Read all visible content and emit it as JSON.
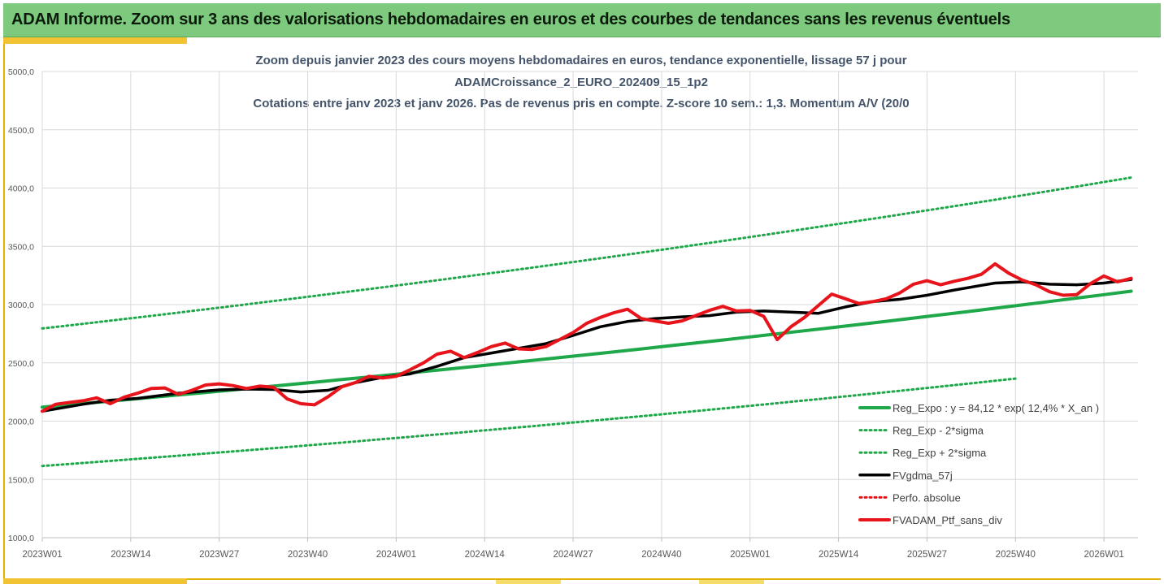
{
  "banner": {
    "title": "ADAM Informe. Zoom sur 3 ans des valorisations hebdomadaires en euros et des courbes de tendances sans les revenus éventuels"
  },
  "chart_data": {
    "type": "line",
    "title_lines": [
      "Zoom depuis janvier 2023 des cours moyens hebdomadaires  en euros, tendance exponentielle, lissage 57 j pour",
      "ADAMCroissance_2_EURO_202409_15_1p2",
      "Cotations entre janv 2023 et janv 2026. Pas de revenus pris en compte. Z-score 10 sem.: 1,3. Momentum A/V (20/0"
    ],
    "ylim": [
      1000,
      5000
    ],
    "y_ticks": [
      "1000,0",
      "1500,0",
      "2000,0",
      "2500,0",
      "3000,0",
      "3500,0",
      "4000,0",
      "4500,0",
      "5000,0"
    ],
    "x_ticks": [
      "2023W01",
      "2023W14",
      "2023W27",
      "2023W40",
      "2024W01",
      "2024W14",
      "2024W27",
      "2024W40",
      "2025W01",
      "2025W14",
      "2025W27",
      "2025W40",
      "2026W01"
    ],
    "x_range_weeks": [
      0,
      161
    ],
    "series": [
      {
        "name": "Reg_Expo : y = 84,12 * exp( 12,4% *  X_an )",
        "color": "#1fa84a",
        "style": "solid",
        "width": 4,
        "x": [
          0,
          160
        ],
        "y": [
          2120,
          3115
        ],
        "curve": "exp"
      },
      {
        "name": "Reg_Exp - 2*sigma",
        "color": "#1fa84a",
        "style": "dotted",
        "width": 3,
        "x": [
          0,
          143
        ],
        "y": [
          1615,
          2365
        ],
        "curve": "exp"
      },
      {
        "name": "Reg_Exp + 2*sigma",
        "color": "#1fa84a",
        "style": "dotted",
        "width": 3,
        "x": [
          0,
          160
        ],
        "y": [
          2795,
          4090
        ],
        "curve": "exp"
      },
      {
        "name": "FVgdma_57j",
        "color": "#000000",
        "style": "solid",
        "width": 3.5,
        "x": [
          0,
          6,
          10,
          14,
          20,
          26,
          30,
          34,
          38,
          42,
          46,
          50,
          54,
          58,
          62,
          66,
          70,
          74,
          78,
          82,
          86,
          90,
          94,
          98,
          102,
          106,
          110,
          114,
          118,
          122,
          126,
          130,
          134,
          138,
          140,
          144,
          148,
          152,
          156,
          160
        ],
        "y": [
          2085,
          2145,
          2180,
          2195,
          2240,
          2268,
          2275,
          2272,
          2250,
          2265,
          2330,
          2375,
          2405,
          2470,
          2545,
          2585,
          2625,
          2665,
          2735,
          2810,
          2855,
          2880,
          2895,
          2905,
          2935,
          2945,
          2935,
          2925,
          2980,
          3025,
          3045,
          3080,
          3125,
          3165,
          3185,
          3195,
          3175,
          3170,
          3185,
          3215
        ]
      },
      {
        "name": "Perfo. absolue",
        "color": "#e8141b",
        "style": "dotted",
        "width": 3,
        "x": [],
        "y": []
      },
      {
        "name": "FVADAM_Ptf_sans_div",
        "color": "#e8141b",
        "style": "solid",
        "width": 4,
        "x": [
          0,
          2,
          4,
          6,
          8,
          10,
          12,
          14,
          16,
          18,
          20,
          22,
          24,
          26,
          28,
          30,
          32,
          34,
          36,
          38,
          40,
          42,
          44,
          46,
          48,
          50,
          52,
          54,
          56,
          58,
          60,
          62,
          64,
          66,
          68,
          70,
          72,
          74,
          76,
          78,
          80,
          82,
          84,
          86,
          88,
          90,
          92,
          94,
          96,
          98,
          100,
          102,
          104,
          106,
          108,
          110,
          112,
          114,
          116,
          118,
          120,
          122,
          124,
          126,
          128,
          130,
          132,
          134,
          136,
          138,
          140,
          142,
          144,
          146,
          148,
          150,
          152,
          154,
          156,
          158,
          160
        ],
        "y": [
          2085,
          2145,
          2160,
          2175,
          2200,
          2150,
          2205,
          2240,
          2280,
          2285,
          2230,
          2265,
          2310,
          2320,
          2305,
          2280,
          2300,
          2290,
          2190,
          2150,
          2140,
          2210,
          2295,
          2330,
          2385,
          2370,
          2385,
          2440,
          2500,
          2575,
          2600,
          2545,
          2590,
          2640,
          2670,
          2620,
          2615,
          2640,
          2700,
          2760,
          2840,
          2890,
          2930,
          2960,
          2880,
          2860,
          2840,
          2860,
          2905,
          2950,
          2985,
          2945,
          2950,
          2900,
          2700,
          2810,
          2890,
          2990,
          3090,
          3050,
          3010,
          3025,
          3050,
          3100,
          3175,
          3205,
          3170,
          3200,
          3225,
          3260,
          3350,
          3270,
          3210,
          3170,
          3110,
          3080,
          3085,
          3180,
          3245,
          3195,
          3225
        ]
      }
    ],
    "legend": {
      "placement": "bottom-right",
      "entries": [
        "Reg_Expo : y = 84,12 * exp( 12,4% *  X_an )",
        "Reg_Exp - 2*sigma",
        "Reg_Exp + 2*sigma",
        "FVgdma_57j",
        "Perfo. absolue",
        "FVADAM_Ptf_sans_div"
      ]
    }
  }
}
